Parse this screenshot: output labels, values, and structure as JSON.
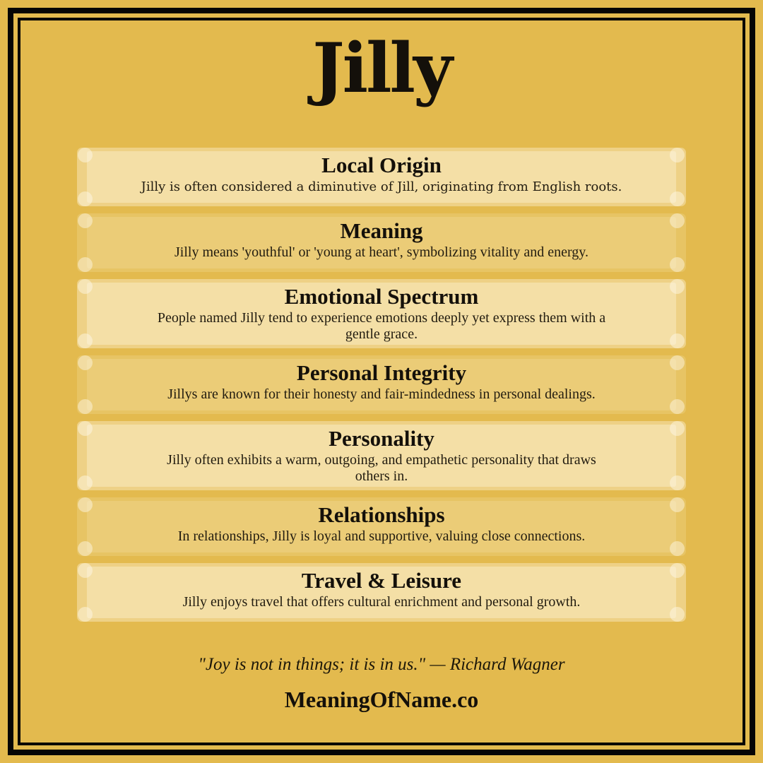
{
  "title": "Jilly",
  "sections": [
    {
      "heading": "Local Origin",
      "body": "Jilly is often considered a diminutive of Jill, originating from English roots."
    },
    {
      "heading": "Meaning",
      "body": "Jilly means 'youthful' or 'young at heart', symbolizing vitality and energy."
    },
    {
      "heading": "Emotional Spectrum",
      "body": "People named Jilly tend to experience emotions deeply yet express them with a\ngentle grace."
    },
    {
      "heading": "Personal Integrity",
      "body": "Jillys are known for their honesty and fair-mindedness in personal dealings."
    },
    {
      "heading": "Personality",
      "body": "Jilly often exhibits a warm, outgoing, and empathetic personality that draws\nothers in."
    },
    {
      "heading": "Relationships",
      "body": "In relationships, Jilly is loyal and supportive, valuing close connections."
    },
    {
      "heading": "Travel & Leisure",
      "body": "Jilly enjoys travel that offers cultural enrichment and personal growth."
    }
  ],
  "quote": "\"Joy is not in things; it is in us.\" — Richard Wagner",
  "footer": "MeaningOfName.co",
  "colors": {
    "background": "#e3ba4e",
    "border": "#050505",
    "heading_text": "#14100a",
    "body_text": "#221c10",
    "card_light_inner": "#f1e0ae",
    "card_light_outer": "#eecf83",
    "card_dark_inner": "#e9ca76",
    "card_dark_outer": "#e6c164"
  }
}
